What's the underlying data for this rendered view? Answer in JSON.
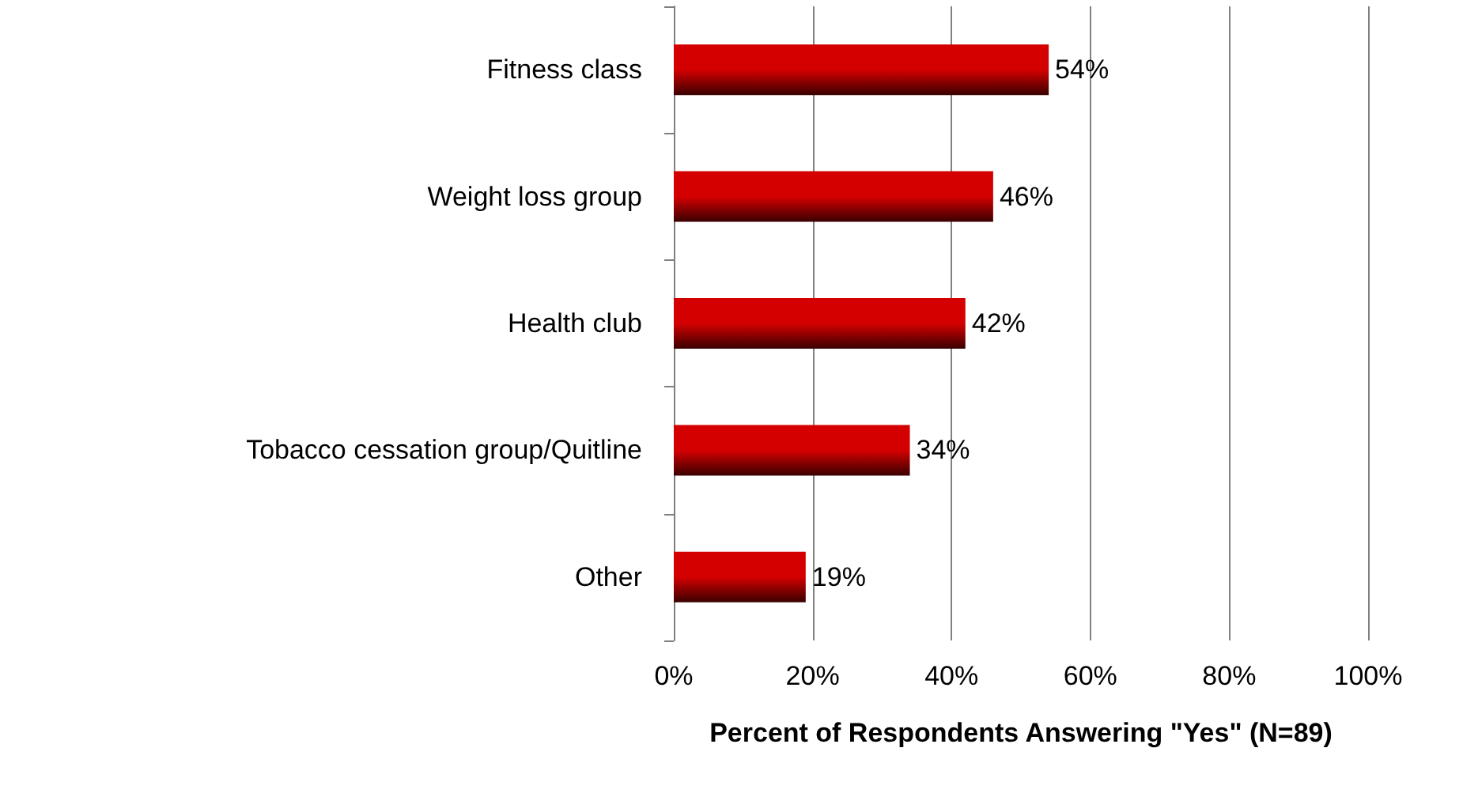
{
  "chart_data": {
    "type": "bar",
    "orientation": "horizontal",
    "xlabel": "Percent of Respondents Answering \"Yes\" (N=89)",
    "categories": [
      "Fitness class",
      "Weight loss group",
      "Health club",
      "Tobacco cessation group/Quitline",
      "Other"
    ],
    "values": [
      54,
      46,
      42,
      34,
      19
    ],
    "value_labels": [
      "54%",
      "46%",
      "42%",
      "34%",
      "19%"
    ],
    "color": "#d40000",
    "xlim": [
      0,
      100
    ],
    "xticks": [
      {
        "value": 0,
        "label": "0%"
      },
      {
        "value": 20,
        "label": "20%"
      },
      {
        "value": 40,
        "label": "40%"
      },
      {
        "value": 60,
        "label": "60%"
      },
      {
        "value": 80,
        "label": "80%"
      },
      {
        "value": 100,
        "label": "100%"
      }
    ],
    "grid": "x"
  }
}
